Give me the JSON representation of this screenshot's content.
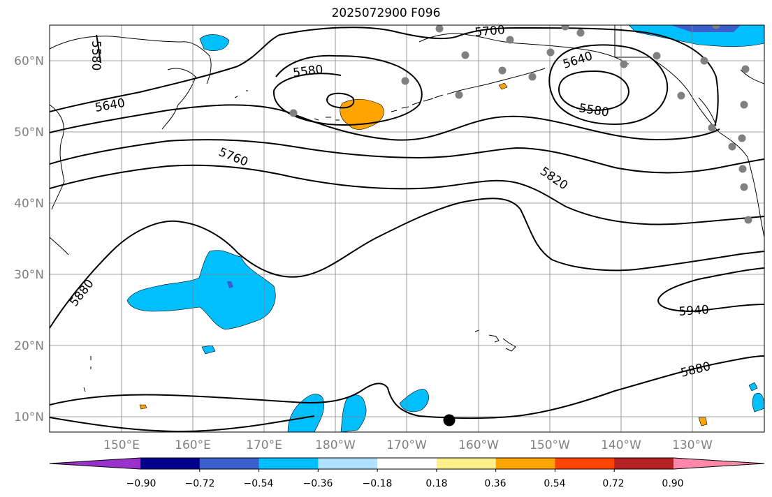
{
  "title": "2025072900 F096",
  "map": {
    "lat_ticks": [
      "10°N",
      "20°N",
      "30°N",
      "40°N",
      "50°N",
      "60°N"
    ],
    "lon_ticks": [
      "150°E",
      "160°E",
      "170°E",
      "180°W",
      "170°W",
      "160°W",
      "150°W",
      "140°W",
      "130°W"
    ],
    "contour_labels": [
      "5580",
      "5580",
      "5580",
      "5640",
      "5640",
      "5700",
      "5760",
      "5820",
      "5880",
      "5880",
      "5940"
    ],
    "colors": {
      "contour": "#000000",
      "grid": "#808080",
      "coast": "#000000",
      "station": "#808080",
      "marker": "#000000"
    }
  },
  "colorbar": {
    "tick_labels": [
      "−0.90",
      "−0.72",
      "−0.54",
      "−0.36",
      "−0.18",
      "0.18",
      "0.36",
      "0.54",
      "0.72",
      "0.90"
    ],
    "colors": [
      "#9932cc",
      "#00008b",
      "#3a5fcd",
      "#00bfff",
      "#b0e2ff",
      "#ffffff",
      "#fff08c",
      "#ffa500",
      "#ff4500",
      "#b22222",
      "#ff88aa"
    ]
  }
}
